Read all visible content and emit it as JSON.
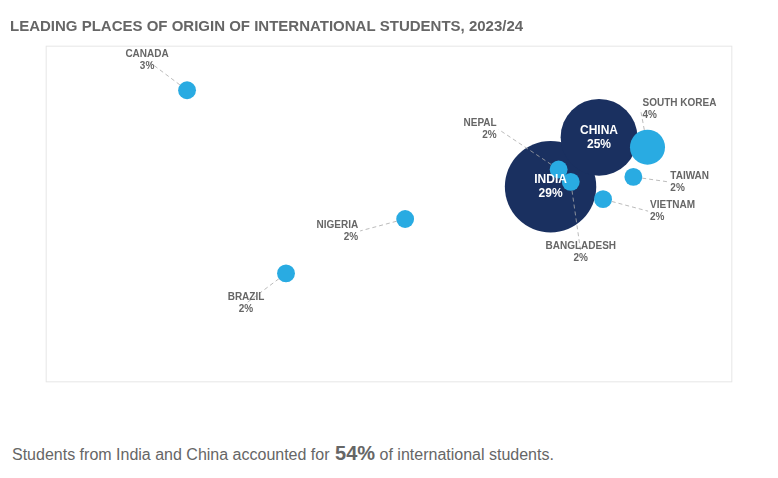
{
  "chart_data": {
    "type": "bubble",
    "title": "LEADING PLACES OF ORIGIN OF INTERNATIONAL STUDENTS, 2023/24",
    "categories": [
      "CANADA",
      "BRAZIL",
      "NIGERIA",
      "NEPAL",
      "BANGLADESH",
      "TAIWAN",
      "VIETNAM",
      "SOUTH KOREA",
      "CHINA",
      "INDIA"
    ],
    "x": [
      -100,
      -51,
      8,
      84,
      90,
      121,
      106,
      128,
      104,
      80
    ],
    "y": [
      60,
      -14,
      8,
      28,
      23,
      25,
      16,
      37,
      41,
      21
    ],
    "values": [
      3,
      2,
      2,
      2,
      2,
      2,
      2,
      4,
      25,
      29
    ],
    "value_labels": [
      "3%",
      "2%",
      "2%",
      "2%",
      "2%",
      "2%",
      "2%",
      "4%",
      "25%",
      "29%"
    ],
    "sizes": [
      130,
      130,
      130,
      130,
      130,
      130,
      130,
      500,
      2400,
      3400
    ],
    "colors": [
      "#29abe2",
      "#29abe2",
      "#29abe2",
      "#29abe2",
      "#29abe2",
      "#29abe2",
      "#29abe2",
      "#29abe2",
      "#1a3060",
      "#1a3060"
    ],
    "data_labels": true,
    "xlim": [
      -170,
      170
    ],
    "ylim": [
      -58,
      78
    ],
    "tick_labels": false,
    "grid": false,
    "annotations": [
      "Students from India and China accounted for",
      "54%",
      "of international students."
    ]
  }
}
